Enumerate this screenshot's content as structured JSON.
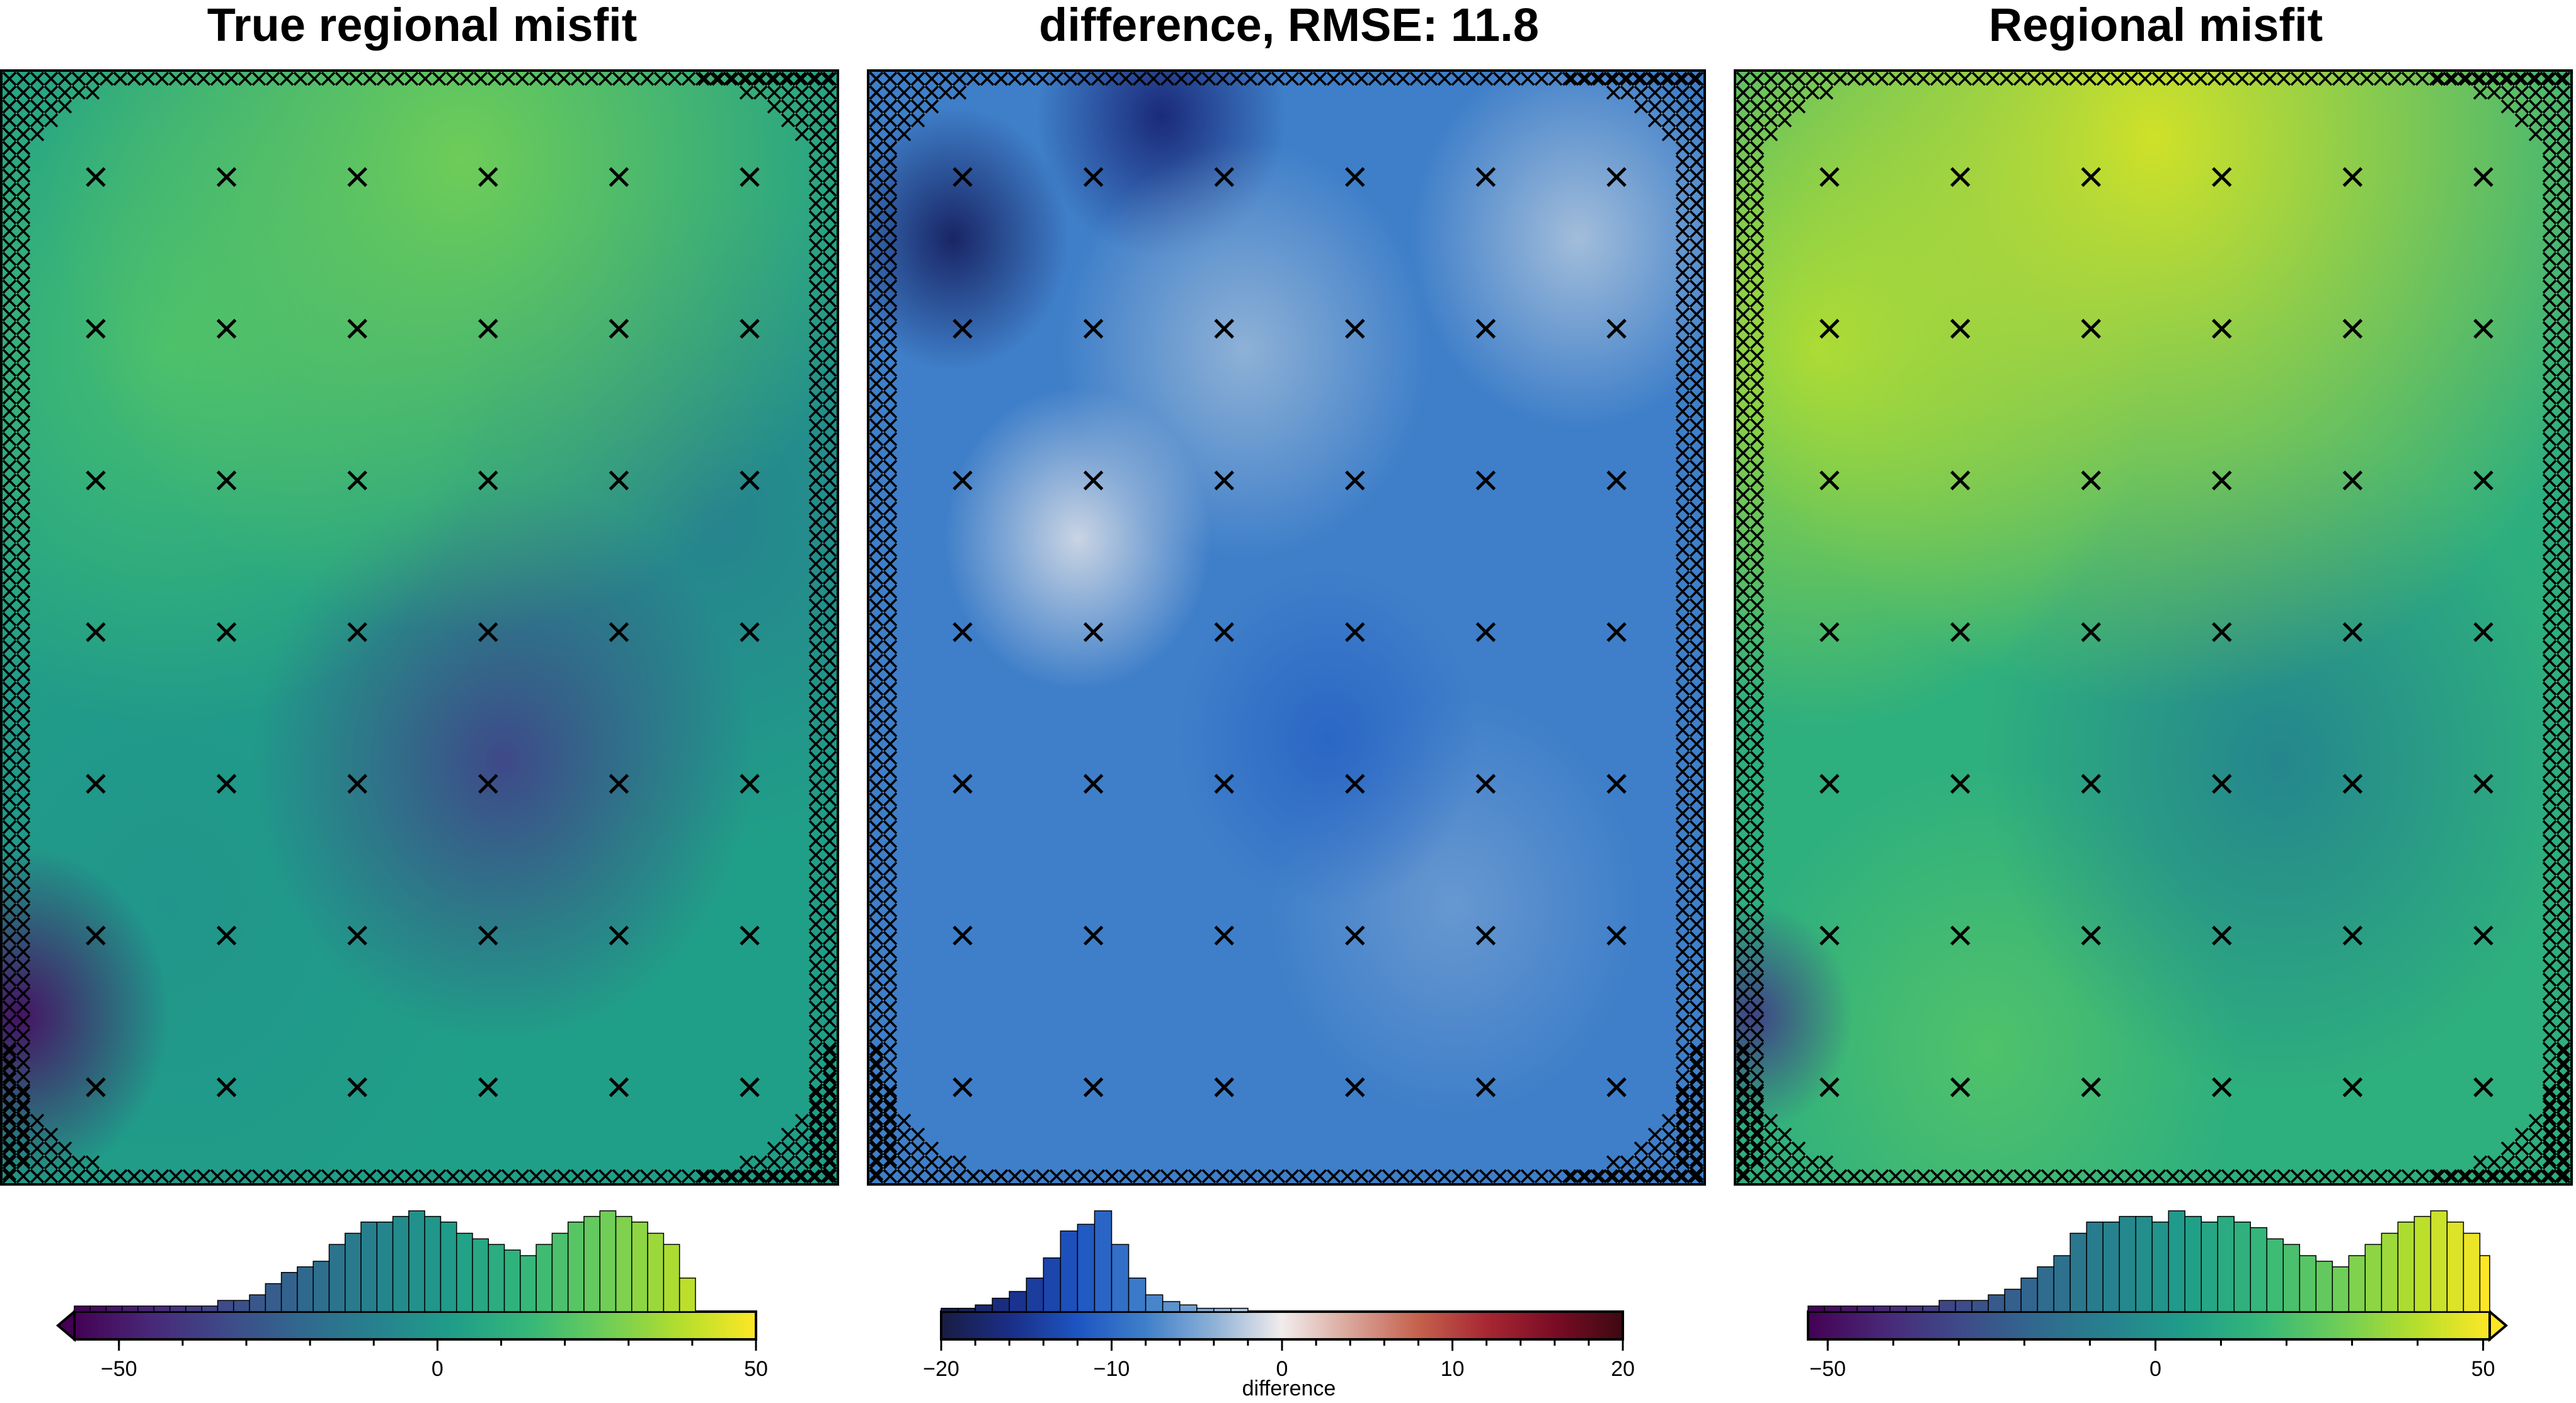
{
  "panels": [
    {
      "id": "true",
      "title": "True regional misfit",
      "cmap": "viridis"
    },
    {
      "id": "diff",
      "title": "difference, RMSE: 11.8",
      "cmap": "balance"
    },
    {
      "id": "est",
      "title": "Regional misfit",
      "cmap": "viridis"
    }
  ],
  "colormaps": {
    "viridis": [
      "#440154",
      "#482878",
      "#3e4a89",
      "#31688e",
      "#26828e",
      "#1f9e89",
      "#35b779",
      "#6dcd59",
      "#b4de2c",
      "#fde725"
    ],
    "balance": [
      "#181c43",
      "#1a2e86",
      "#1d55c2",
      "#3f7fc9",
      "#8eb1d6",
      "#f1eceb",
      "#d9a59a",
      "#c5614d",
      "#a72732",
      "#7a0c25",
      "#3c0912"
    ]
  },
  "chart_data": [
    {
      "type": "heatmap",
      "title": "True regional misfit",
      "colorbar": {
        "range": [
          -57,
          50
        ],
        "ticks": [
          -50,
          0,
          50
        ],
        "tick_labels": [
          "−50",
          "0",
          "50"
        ],
        "extend_min": true,
        "extend_max": false,
        "label": ""
      },
      "histogram": {
        "bin_start": -57,
        "bin_width": 2.5,
        "counts": [
          1,
          1,
          1,
          1,
          1,
          1,
          1,
          1,
          1,
          2,
          2,
          3,
          5,
          7,
          8,
          9,
          12,
          14,
          16,
          16,
          17,
          18,
          17,
          16,
          14,
          13,
          12,
          11,
          10,
          12,
          14,
          16,
          17,
          18,
          17,
          16,
          14,
          12,
          6,
          0,
          0,
          0,
          0
        ]
      },
      "markers": "x",
      "marker_grid_rows": 7,
      "marker_grid_cols": 6
    },
    {
      "type": "heatmap",
      "title": "difference, RMSE: 11.8",
      "colorbar": {
        "range": [
          -20,
          20
        ],
        "ticks": [
          -20,
          -10,
          0,
          10,
          20
        ],
        "tick_labels": [
          "−20",
          "−10",
          "0",
          "10",
          "20"
        ],
        "extend_min": false,
        "extend_max": false,
        "label": "difference"
      },
      "histogram": {
        "bin_start": -20,
        "bin_width": 1,
        "counts": [
          1,
          1,
          2,
          4,
          6,
          10,
          16,
          24,
          26,
          30,
          20,
          10,
          5,
          3,
          2,
          1,
          1,
          1,
          0,
          0,
          0,
          0,
          0,
          0,
          0,
          0,
          0,
          0,
          0,
          0,
          0,
          0,
          0,
          0,
          0,
          0,
          0,
          0,
          0,
          0
        ]
      },
      "markers": "x",
      "marker_grid_rows": 7,
      "marker_grid_cols": 6
    },
    {
      "type": "heatmap",
      "title": "Regional misfit",
      "colorbar": {
        "range": [
          -53,
          51
        ],
        "ticks": [
          -50,
          0,
          50
        ],
        "tick_labels": [
          "−50",
          "0",
          "50"
        ],
        "extend_min": false,
        "extend_max": true,
        "label": ""
      },
      "histogram": {
        "bin_start": -53,
        "bin_width": 2.5,
        "counts": [
          1,
          1,
          1,
          1,
          1,
          1,
          1,
          1,
          2,
          2,
          2,
          3,
          4,
          6,
          8,
          10,
          14,
          16,
          16,
          17,
          17,
          16,
          18,
          17,
          16,
          17,
          16,
          15,
          13,
          12,
          10,
          9,
          8,
          10,
          12,
          14,
          16,
          17,
          18,
          16,
          14,
          10,
          6
        ]
      },
      "markers": "x",
      "marker_grid_rows": 7,
      "marker_grid_cols": 6
    }
  ]
}
